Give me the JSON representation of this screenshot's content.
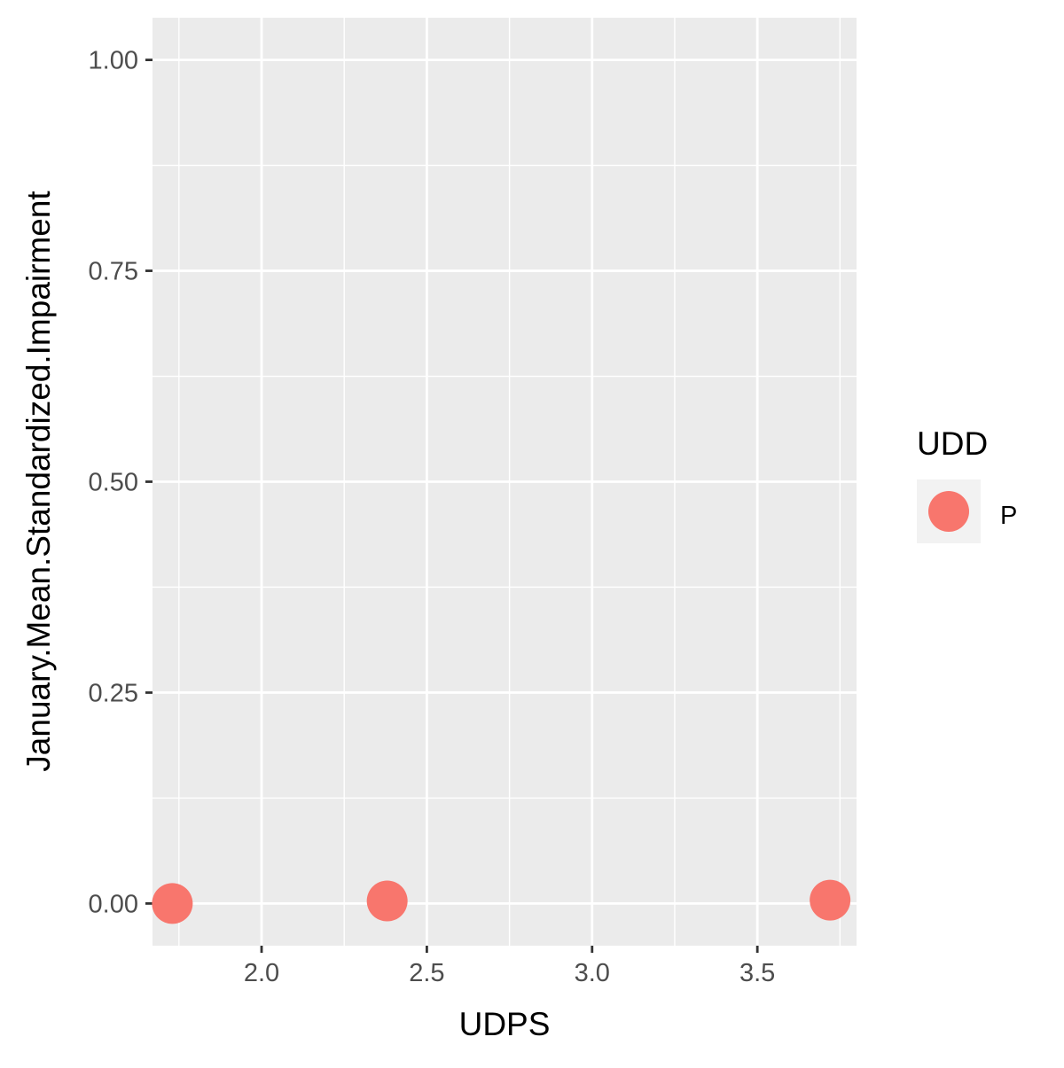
{
  "chart_data": {
    "type": "scatter",
    "title": "",
    "xlabel": "UDPS",
    "ylabel": "January.Mean.Standardized.Impairment",
    "xlim": [
      1.67,
      3.8
    ],
    "ylim": [
      -0.05,
      1.05
    ],
    "x_ticks": [
      "2.0",
      "2.5",
      "3.0",
      "3.5"
    ],
    "x_tick_values": [
      2.0,
      2.5,
      3.0,
      3.5
    ],
    "y_ticks": [
      "0.00",
      "0.25",
      "0.50",
      "0.75",
      "1.00"
    ],
    "y_tick_values": [
      0.0,
      0.25,
      0.5,
      0.75,
      1.0
    ],
    "grid": true,
    "legend_position": "right",
    "legend": {
      "title": "UDD",
      "entries": [
        {
          "label": "P",
          "color": "#F8766D"
        }
      ]
    },
    "series": [
      {
        "name": "P",
        "color": "#F8766D",
        "points": [
          {
            "x": 1.73,
            "y": 0.0
          },
          {
            "x": 2.38,
            "y": 0.003
          },
          {
            "x": 3.72,
            "y": 0.004
          }
        ]
      }
    ],
    "colors": {
      "panel_background": "#EBEBEB",
      "grid_line": "#FFFFFF",
      "tick_mark": "#333333"
    }
  }
}
